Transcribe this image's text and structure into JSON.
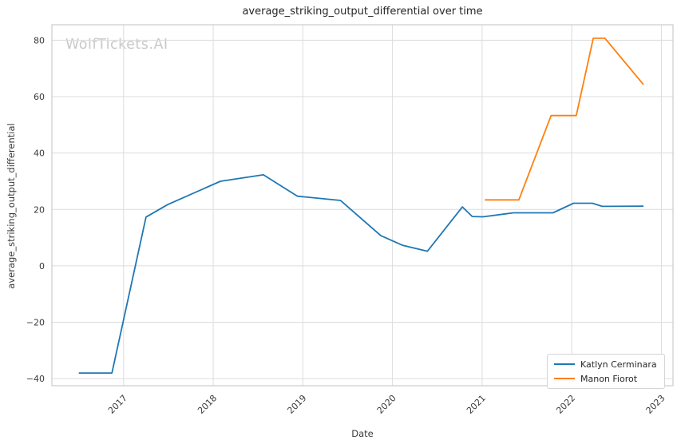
{
  "watermark": "WolfTickets.AI",
  "chart_data": {
    "type": "line",
    "title": "average_striking_output_differential over time",
    "xlabel": "Date",
    "ylabel": "average_striking_output_differential",
    "grid": true,
    "legend_position": "lower right",
    "xlim": [
      2016.2,
      2023.13
    ],
    "ylim": [
      -42.5,
      85.5
    ],
    "x_tick_rotation": 45,
    "x_ticks": [
      {
        "value": 2017,
        "label": "2017"
      },
      {
        "value": 2018,
        "label": "2018"
      },
      {
        "value": 2019,
        "label": "2019"
      },
      {
        "value": 2020,
        "label": "2020"
      },
      {
        "value": 2021,
        "label": "2021"
      },
      {
        "value": 2022,
        "label": "2022"
      },
      {
        "value": 2023,
        "label": "2023"
      }
    ],
    "y_ticks": [
      {
        "value": -40,
        "label": "−40"
      },
      {
        "value": -20,
        "label": "−20"
      },
      {
        "value": 0,
        "label": "0"
      },
      {
        "value": 20,
        "label": "20"
      },
      {
        "value": 40,
        "label": "40"
      },
      {
        "value": 60,
        "label": "60"
      },
      {
        "value": 80,
        "label": "80"
      }
    ],
    "series": [
      {
        "name": "Katlyn Cerminara",
        "color": "#1f77b4",
        "x": [
          2016.5,
          2016.87,
          2017.25,
          2017.49,
          2018.08,
          2018.56,
          2018.94,
          2019.42,
          2019.87,
          2020.11,
          2020.39,
          2020.78,
          2020.89,
          2021.01,
          2021.35,
          2021.79,
          2022.02,
          2022.23,
          2022.34,
          2022.8
        ],
        "y": [
          -38,
          -38,
          17.3,
          21.7,
          30.0,
          32.3,
          24.7,
          23.2,
          10.7,
          7.3,
          5.2,
          20.9,
          17.5,
          17.4,
          18.8,
          18.8,
          22.2,
          22.2,
          21.1,
          21.2
        ]
      },
      {
        "name": "Manon Fiorot",
        "color": "#ff7f0e",
        "x": [
          2021.03,
          2021.41,
          2021.77,
          2022.05,
          2022.24,
          2022.37,
          2022.8
        ],
        "y": [
          23.4,
          23.4,
          53.3,
          53.3,
          80.7,
          80.7,
          64.3
        ]
      }
    ]
  }
}
